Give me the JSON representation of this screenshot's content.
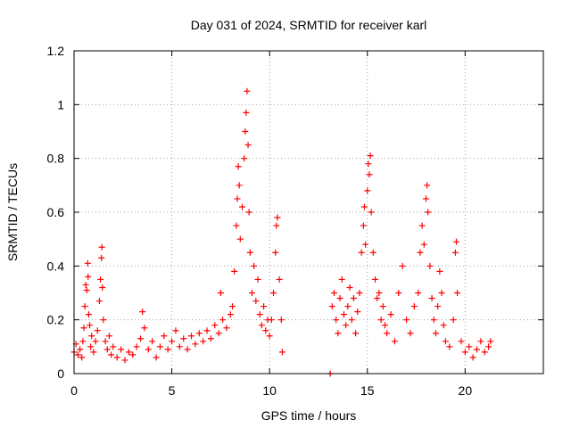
{
  "chart_data": {
    "type": "scatter",
    "title": "Day 031 of 2024, SRMTID for receiver karl",
    "xlabel": "GPS time / hours",
    "ylabel": "SRMTID / TECUs",
    "xlim": [
      0,
      24
    ],
    "ylim": [
      0,
      1.2
    ],
    "xticks": [
      0,
      5,
      10,
      15,
      20
    ],
    "yticks": [
      0,
      0.2,
      0.4,
      0.6,
      0.8,
      1,
      1.2
    ],
    "ytick_labels": [
      "0",
      "0.2",
      "0.4",
      "0.6",
      "0.8",
      "1",
      "1.2"
    ],
    "grid": true,
    "marker": "plus",
    "marker_color": "#ff0000",
    "series": [
      {
        "name": "SRMTID",
        "points": [
          [
            0.0,
            0.08
          ],
          [
            0.1,
            0.11
          ],
          [
            0.2,
            0.07
          ],
          [
            0.3,
            0.09
          ],
          [
            0.4,
            0.06
          ],
          [
            0.45,
            0.12
          ],
          [
            0.5,
            0.17
          ],
          [
            0.55,
            0.25
          ],
          [
            0.6,
            0.33
          ],
          [
            0.65,
            0.31
          ],
          [
            0.7,
            0.41
          ],
          [
            0.72,
            0.36
          ],
          [
            0.75,
            0.22
          ],
          [
            0.8,
            0.18
          ],
          [
            0.85,
            0.1
          ],
          [
            0.9,
            0.14
          ],
          [
            1.0,
            0.08
          ],
          [
            1.1,
            0.12
          ],
          [
            1.2,
            0.16
          ],
          [
            1.3,
            0.27
          ],
          [
            1.35,
            0.35
          ],
          [
            1.4,
            0.43
          ],
          [
            1.42,
            0.47
          ],
          [
            1.45,
            0.32
          ],
          [
            1.5,
            0.2
          ],
          [
            1.6,
            0.12
          ],
          [
            1.7,
            0.09
          ],
          [
            1.8,
            0.14
          ],
          [
            1.9,
            0.07
          ],
          [
            2.0,
            0.1
          ],
          [
            2.2,
            0.06
          ],
          [
            2.4,
            0.09
          ],
          [
            2.6,
            0.05
          ],
          [
            2.8,
            0.08
          ],
          [
            3.0,
            0.07
          ],
          [
            3.2,
            0.1
          ],
          [
            3.4,
            0.13
          ],
          [
            3.5,
            0.23
          ],
          [
            3.6,
            0.17
          ],
          [
            3.8,
            0.09
          ],
          [
            4.0,
            0.12
          ],
          [
            4.2,
            0.06
          ],
          [
            4.4,
            0.1
          ],
          [
            4.6,
            0.14
          ],
          [
            4.8,
            0.09
          ],
          [
            5.0,
            0.12
          ],
          [
            5.2,
            0.16
          ],
          [
            5.4,
            0.1
          ],
          [
            5.6,
            0.13
          ],
          [
            5.8,
            0.09
          ],
          [
            6.0,
            0.14
          ],
          [
            6.2,
            0.11
          ],
          [
            6.4,
            0.15
          ],
          [
            6.6,
            0.12
          ],
          [
            6.8,
            0.16
          ],
          [
            7.0,
            0.13
          ],
          [
            7.2,
            0.18
          ],
          [
            7.4,
            0.15
          ],
          [
            7.5,
            0.3
          ],
          [
            7.6,
            0.2
          ],
          [
            7.8,
            0.17
          ],
          [
            8.0,
            0.22
          ],
          [
            8.1,
            0.25
          ],
          [
            8.2,
            0.38
          ],
          [
            8.3,
            0.55
          ],
          [
            8.35,
            0.65
          ],
          [
            8.4,
            0.77
          ],
          [
            8.45,
            0.7
          ],
          [
            8.5,
            0.5
          ],
          [
            8.6,
            0.62
          ],
          [
            8.7,
            0.8
          ],
          [
            8.75,
            0.9
          ],
          [
            8.8,
            0.97
          ],
          [
            8.85,
            1.05
          ],
          [
            8.9,
            0.85
          ],
          [
            8.95,
            0.6
          ],
          [
            9.0,
            0.45
          ],
          [
            9.1,
            0.3
          ],
          [
            9.2,
            0.4
          ],
          [
            9.3,
            0.27
          ],
          [
            9.4,
            0.35
          ],
          [
            9.5,
            0.22
          ],
          [
            9.6,
            0.18
          ],
          [
            9.7,
            0.25
          ],
          [
            9.8,
            0.16
          ],
          [
            9.9,
            0.2
          ],
          [
            10.0,
            0.14
          ],
          [
            10.1,
            0.2
          ],
          [
            10.2,
            0.3
          ],
          [
            10.3,
            0.45
          ],
          [
            10.35,
            0.55
          ],
          [
            10.4,
            0.58
          ],
          [
            10.5,
            0.35
          ],
          [
            10.6,
            0.2
          ],
          [
            10.65,
            0.08
          ],
          [
            13.1,
            0.0
          ],
          [
            13.2,
            0.25
          ],
          [
            13.3,
            0.3
          ],
          [
            13.4,
            0.2
          ],
          [
            13.5,
            0.15
          ],
          [
            13.6,
            0.28
          ],
          [
            13.7,
            0.35
          ],
          [
            13.8,
            0.22
          ],
          [
            13.9,
            0.18
          ],
          [
            14.0,
            0.25
          ],
          [
            14.1,
            0.32
          ],
          [
            14.2,
            0.2
          ],
          [
            14.3,
            0.28
          ],
          [
            14.4,
            0.15
          ],
          [
            14.5,
            0.23
          ],
          [
            14.6,
            0.3
          ],
          [
            14.7,
            0.45
          ],
          [
            14.8,
            0.55
          ],
          [
            14.85,
            0.62
          ],
          [
            14.9,
            0.48
          ],
          [
            15.0,
            0.68
          ],
          [
            15.05,
            0.78
          ],
          [
            15.1,
            0.74
          ],
          [
            15.15,
            0.81
          ],
          [
            15.2,
            0.6
          ],
          [
            15.3,
            0.45
          ],
          [
            15.4,
            0.35
          ],
          [
            15.5,
            0.28
          ],
          [
            15.6,
            0.3
          ],
          [
            15.7,
            0.2
          ],
          [
            15.8,
            0.25
          ],
          [
            15.9,
            0.18
          ],
          [
            16.0,
            0.15
          ],
          [
            16.2,
            0.22
          ],
          [
            16.4,
            0.12
          ],
          [
            16.6,
            0.3
          ],
          [
            16.8,
            0.4
          ],
          [
            17.0,
            0.2
          ],
          [
            17.2,
            0.15
          ],
          [
            17.4,
            0.25
          ],
          [
            17.6,
            0.3
          ],
          [
            17.7,
            0.45
          ],
          [
            17.8,
            0.55
          ],
          [
            17.9,
            0.48
          ],
          [
            18.0,
            0.65
          ],
          [
            18.05,
            0.7
          ],
          [
            18.1,
            0.6
          ],
          [
            18.2,
            0.4
          ],
          [
            18.3,
            0.28
          ],
          [
            18.4,
            0.2
          ],
          [
            18.5,
            0.15
          ],
          [
            18.6,
            0.25
          ],
          [
            18.7,
            0.38
          ],
          [
            18.8,
            0.3
          ],
          [
            18.9,
            0.18
          ],
          [
            19.0,
            0.12
          ],
          [
            19.2,
            0.1
          ],
          [
            19.4,
            0.2
          ],
          [
            19.5,
            0.45
          ],
          [
            19.55,
            0.49
          ],
          [
            19.6,
            0.3
          ],
          [
            19.8,
            0.12
          ],
          [
            20.0,
            0.08
          ],
          [
            20.2,
            0.1
          ],
          [
            20.4,
            0.06
          ],
          [
            20.6,
            0.09
          ],
          [
            20.8,
            0.12
          ],
          [
            21.0,
            0.08
          ],
          [
            21.2,
            0.1
          ],
          [
            21.3,
            0.12
          ]
        ]
      }
    ]
  }
}
